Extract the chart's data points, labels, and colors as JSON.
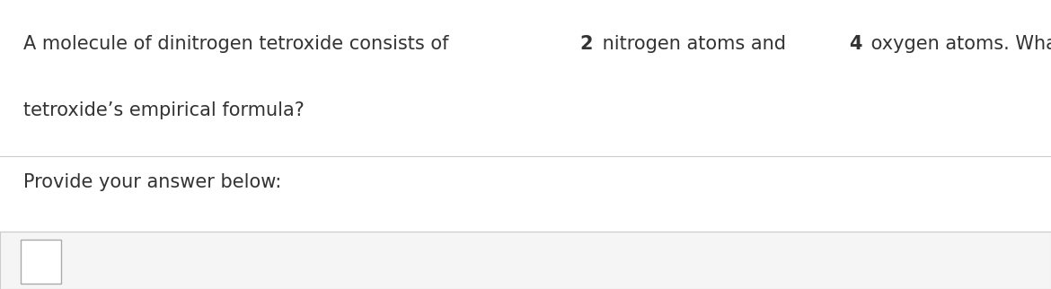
{
  "background_color": "#ffffff",
  "question_text_line1_normal1": "A molecule of dinitrogen tetroxide consists of ",
  "question_bold1": "2",
  "question_text_line1_normal2": " nitrogen atoms and ",
  "question_bold2": "4",
  "question_text_line1_normal3": " oxygen atoms. What is dinitrogen",
  "question_text_line2": "tetroxide’s empirical formula?",
  "provide_text": "Provide your answer below:",
  "text_color": "#333333",
  "line_color": "#cccccc",
  "box_color": "#f5f5f5",
  "box_border_color": "#cccccc",
  "small_box_border_color": "#aaaaaa",
  "font_size_question": 15,
  "font_size_provide": 15,
  "fig_width": 11.7,
  "fig_height": 3.22
}
